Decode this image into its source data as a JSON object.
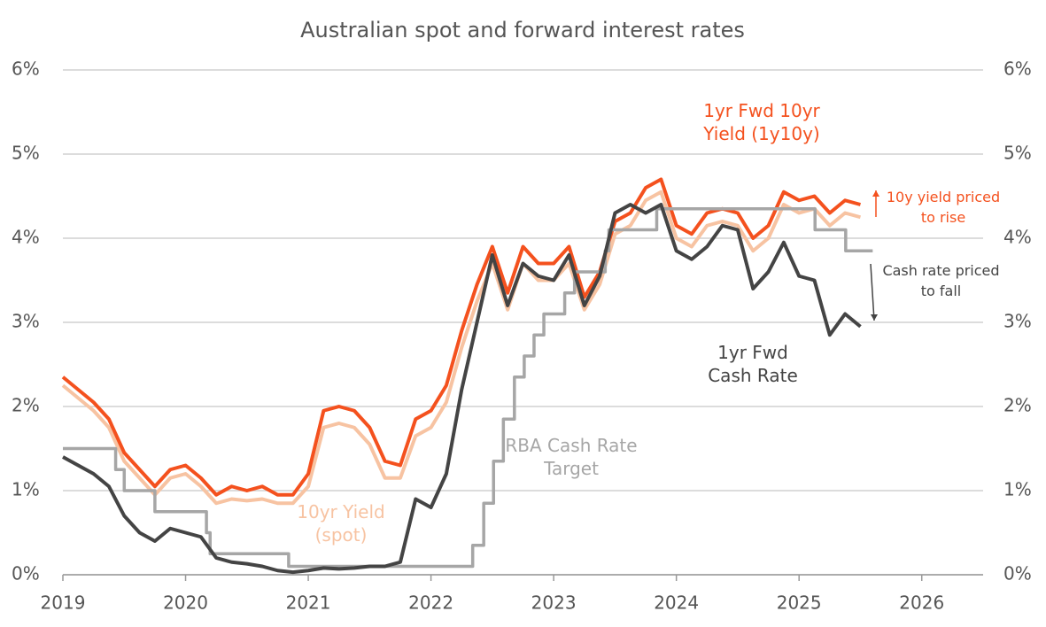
{
  "chart_data": {
    "type": "line",
    "title": "Australian spot and forward interest rates",
    "xlim": [
      2019,
      2026.5
    ],
    "xticks": [
      2019,
      2020,
      2021,
      2022,
      2023,
      2024,
      2025,
      2026
    ],
    "ylim": [
      0,
      6
    ],
    "yticks": [
      {
        "value": 0,
        "label": "0%"
      },
      {
        "value": 1,
        "label": "1%"
      },
      {
        "value": 2,
        "label": "2%"
      },
      {
        "value": 3,
        "label": "3%"
      },
      {
        "value": 4,
        "label": "4%"
      },
      {
        "value": 5,
        "label": "5%"
      },
      {
        "value": 6,
        "label": "6%"
      }
    ],
    "y2lim": [
      0,
      6
    ],
    "y2ticks": [
      {
        "value": 0,
        "label": "0%"
      },
      {
        "value": 1,
        "label": "1%"
      },
      {
        "value": 2,
        "label": "2%"
      },
      {
        "value": 3,
        "label": "3%"
      },
      {
        "value": 4,
        "label": "4%"
      },
      {
        "value": 5,
        "label": "5%"
      },
      {
        "value": 6,
        "label": "6%"
      }
    ],
    "grid": true,
    "series": [
      {
        "name": "1yr Fwd 10yr Yield (1y10y)",
        "color": "#f4511e",
        "x": [
          2019,
          2019.125,
          2019.25,
          2019.375,
          2019.5,
          2019.625,
          2019.75,
          2019.875,
          2020,
          2020.125,
          2020.25,
          2020.375,
          2020.5,
          2020.625,
          2020.75,
          2020.875,
          2021,
          2021.125,
          2021.25,
          2021.375,
          2021.5,
          2021.625,
          2021.75,
          2021.875,
          2022,
          2022.125,
          2022.25,
          2022.375,
          2022.5,
          2022.625,
          2022.75,
          2022.875,
          2023,
          2023.125,
          2023.25,
          2023.375,
          2023.5,
          2023.625,
          2023.75,
          2023.875,
          2024,
          2024.125,
          2024.25,
          2024.375,
          2024.5,
          2024.625,
          2024.75,
          2024.875,
          2025,
          2025.125,
          2025.25,
          2025.375,
          2025.5
        ],
        "values": [
          2.35,
          2.2,
          2.05,
          1.85,
          1.45,
          1.25,
          1.05,
          1.25,
          1.3,
          1.15,
          0.95,
          1.05,
          1.0,
          1.05,
          0.95,
          0.95,
          1.2,
          1.95,
          2.0,
          1.95,
          1.75,
          1.35,
          1.3,
          1.85,
          1.95,
          2.25,
          2.9,
          3.45,
          3.9,
          3.35,
          3.9,
          3.7,
          3.7,
          3.9,
          3.3,
          3.6,
          4.2,
          4.3,
          4.6,
          4.7,
          4.15,
          4.05,
          4.3,
          4.35,
          4.3,
          4.0,
          4.15,
          4.55,
          4.45,
          4.5,
          4.3,
          4.45,
          4.4
        ]
      },
      {
        "name": "10yr Yield (spot)",
        "color": "#f7c3a2",
        "x": [
          2019,
          2019.125,
          2019.25,
          2019.375,
          2019.5,
          2019.625,
          2019.75,
          2019.875,
          2020,
          2020.125,
          2020.25,
          2020.375,
          2020.5,
          2020.625,
          2020.75,
          2020.875,
          2021,
          2021.125,
          2021.25,
          2021.375,
          2021.5,
          2021.625,
          2021.75,
          2021.875,
          2022,
          2022.125,
          2022.25,
          2022.375,
          2022.5,
          2022.625,
          2022.75,
          2022.875,
          2023,
          2023.125,
          2023.25,
          2023.375,
          2023.5,
          2023.625,
          2023.75,
          2023.875,
          2024,
          2024.125,
          2024.25,
          2024.375,
          2024.5,
          2024.625,
          2024.75,
          2024.875,
          2025,
          2025.125,
          2025.25,
          2025.375,
          2025.5
        ],
        "values": [
          2.25,
          2.1,
          1.95,
          1.75,
          1.35,
          1.15,
          0.95,
          1.15,
          1.2,
          1.05,
          0.85,
          0.9,
          0.88,
          0.9,
          0.85,
          0.85,
          1.05,
          1.75,
          1.8,
          1.75,
          1.55,
          1.15,
          1.15,
          1.65,
          1.75,
          2.05,
          2.7,
          3.25,
          3.7,
          3.15,
          3.7,
          3.5,
          3.5,
          3.7,
          3.15,
          3.45,
          4.05,
          4.15,
          4.45,
          4.55,
          4.0,
          3.9,
          4.15,
          4.2,
          4.15,
          3.85,
          4.0,
          4.4,
          4.3,
          4.35,
          4.15,
          4.3,
          4.25
        ]
      },
      {
        "name": "1yr Fwd Cash Rate",
        "color": "#444444",
        "x": [
          2019,
          2019.125,
          2019.25,
          2019.375,
          2019.5,
          2019.625,
          2019.75,
          2019.875,
          2020,
          2020.125,
          2020.25,
          2020.375,
          2020.5,
          2020.625,
          2020.75,
          2020.875,
          2021,
          2021.125,
          2021.25,
          2021.375,
          2021.5,
          2021.625,
          2021.75,
          2021.875,
          2022,
          2022.125,
          2022.25,
          2022.375,
          2022.5,
          2022.625,
          2022.75,
          2022.875,
          2023,
          2023.125,
          2023.25,
          2023.375,
          2023.5,
          2023.625,
          2023.75,
          2023.875,
          2024,
          2024.125,
          2024.25,
          2024.375,
          2024.5,
          2024.625,
          2024.75,
          2024.875,
          2025,
          2025.125,
          2025.25,
          2025.375,
          2025.5
        ],
        "values": [
          1.4,
          1.3,
          1.2,
          1.05,
          0.7,
          0.5,
          0.4,
          0.55,
          0.5,
          0.45,
          0.2,
          0.15,
          0.13,
          0.1,
          0.05,
          0.03,
          0.05,
          0.08,
          0.07,
          0.08,
          0.1,
          0.1,
          0.15,
          0.9,
          0.8,
          1.2,
          2.2,
          3.0,
          3.8,
          3.2,
          3.7,
          3.55,
          3.5,
          3.8,
          3.2,
          3.55,
          4.3,
          4.4,
          4.3,
          4.4,
          3.85,
          3.75,
          3.9,
          4.15,
          4.1,
          3.4,
          3.6,
          3.95,
          3.55,
          3.5,
          2.85,
          3.1,
          2.95
        ]
      },
      {
        "name": "RBA Cash Rate Target",
        "color": "#a6a6a6",
        "step": true,
        "x": [
          2019,
          2019.43,
          2019.5,
          2019.75,
          2020.17,
          2020.2,
          2020.84,
          2022.34,
          2022.43,
          2022.51,
          2022.59,
          2022.68,
          2022.76,
          2022.84,
          2022.92,
          2023.09,
          2023.17,
          2023.42,
          2023.45,
          2023.84,
          2025.13,
          2025.38,
          2025.6
        ],
        "values": [
          1.5,
          1.25,
          1.0,
          0.75,
          0.5,
          0.25,
          0.1,
          0.35,
          0.85,
          1.35,
          1.85,
          2.35,
          2.6,
          2.85,
          3.1,
          3.35,
          3.6,
          3.85,
          4.1,
          4.35,
          4.1,
          3.85,
          3.85
        ]
      }
    ],
    "annotations": [
      "10y yield priced to rise",
      "Cash rate priced to fall"
    ]
  }
}
